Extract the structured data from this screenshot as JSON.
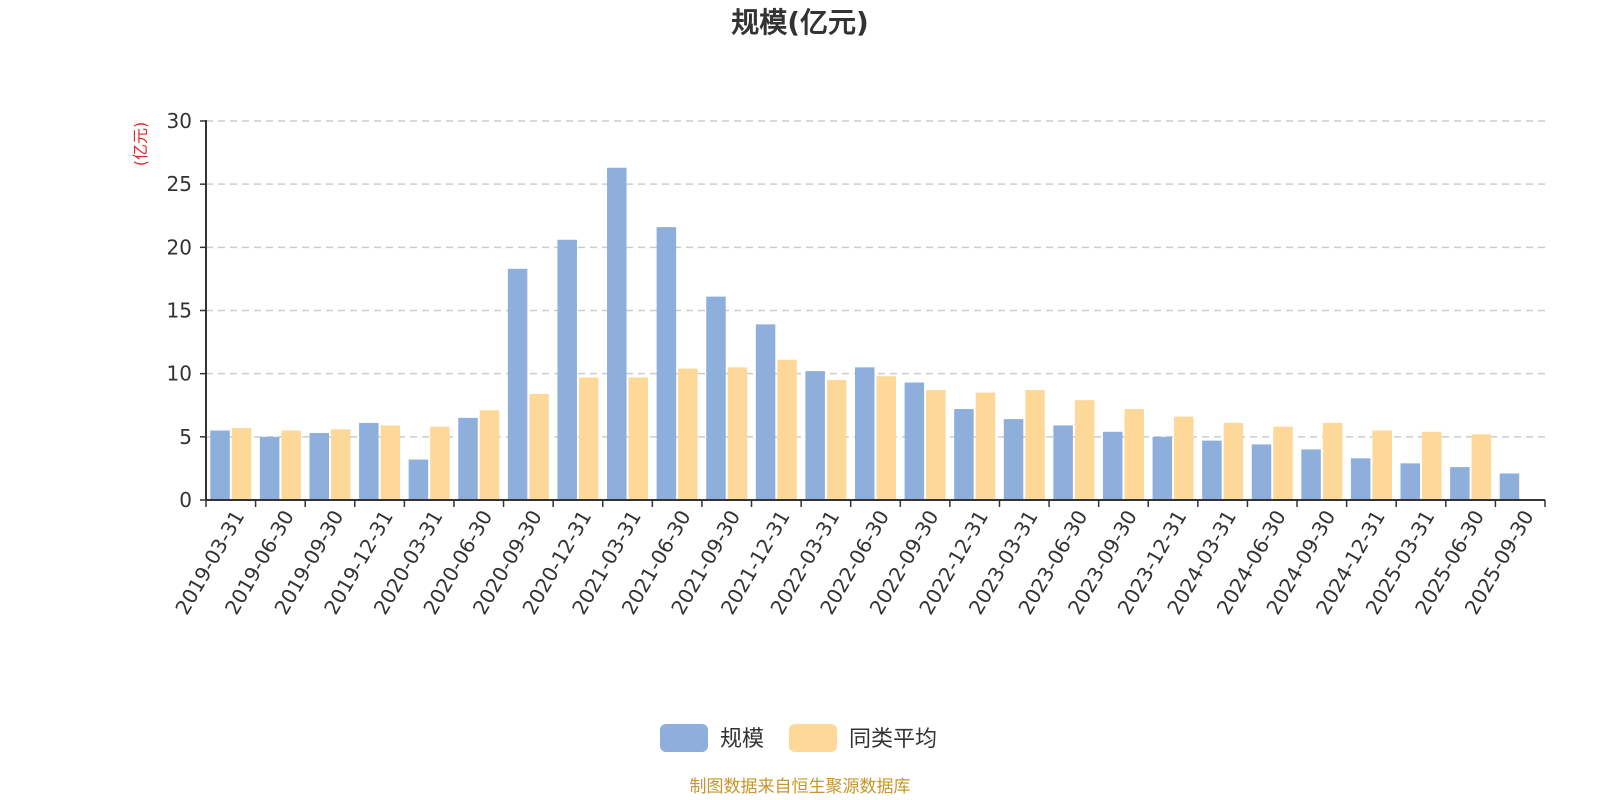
{
  "chart_data": {
    "type": "bar",
    "title": "规模(亿元)",
    "ylabel": "(亿元)",
    "xlabel": "",
    "ylim": [
      0,
      30
    ],
    "yticks": [
      0,
      5,
      10,
      15,
      20,
      25,
      30
    ],
    "grid": true,
    "legend_position": "bottom-center",
    "categories": [
      "2019-03-31",
      "2019-06-30",
      "2019-09-30",
      "2019-12-31",
      "2020-03-31",
      "2020-06-30",
      "2020-09-30",
      "2020-12-31",
      "2021-03-31",
      "2021-06-30",
      "2021-09-30",
      "2021-12-31",
      "2022-03-31",
      "2022-06-30",
      "2022-09-30",
      "2022-12-31",
      "2023-03-31",
      "2023-06-30",
      "2023-09-30",
      "2023-12-31",
      "2024-03-31",
      "2024-06-30",
      "2024-09-30",
      "2024-12-31",
      "2025-03-31",
      "2025-06-30",
      "2025-09-30"
    ],
    "series": [
      {
        "name": "规模",
        "color": "#8eaedb",
        "values": [
          5.5,
          5.0,
          5.3,
          6.1,
          3.2,
          6.5,
          18.3,
          20.6,
          26.3,
          21.6,
          16.1,
          13.9,
          10.2,
          10.5,
          9.3,
          7.2,
          6.4,
          5.9,
          5.4,
          5.0,
          4.7,
          4.4,
          4.0,
          3.3,
          2.9,
          2.6,
          2.1
        ]
      },
      {
        "name": "同类平均",
        "color": "#fdd899",
        "values": [
          5.7,
          5.5,
          5.6,
          5.9,
          5.8,
          7.1,
          8.4,
          9.7,
          9.7,
          10.4,
          10.5,
          11.1,
          9.5,
          9.8,
          8.7,
          8.5,
          8.7,
          7.9,
          7.2,
          6.6,
          6.1,
          5.8,
          6.1,
          5.5,
          5.4,
          5.2,
          null
        ]
      }
    ],
    "source_note": "制图数据来自恒生聚源数据库",
    "colors": {
      "unit_label": "#e0252b",
      "source_note": "#c8962a",
      "gridline": "#cccccc",
      "axis": "#333333"
    }
  }
}
